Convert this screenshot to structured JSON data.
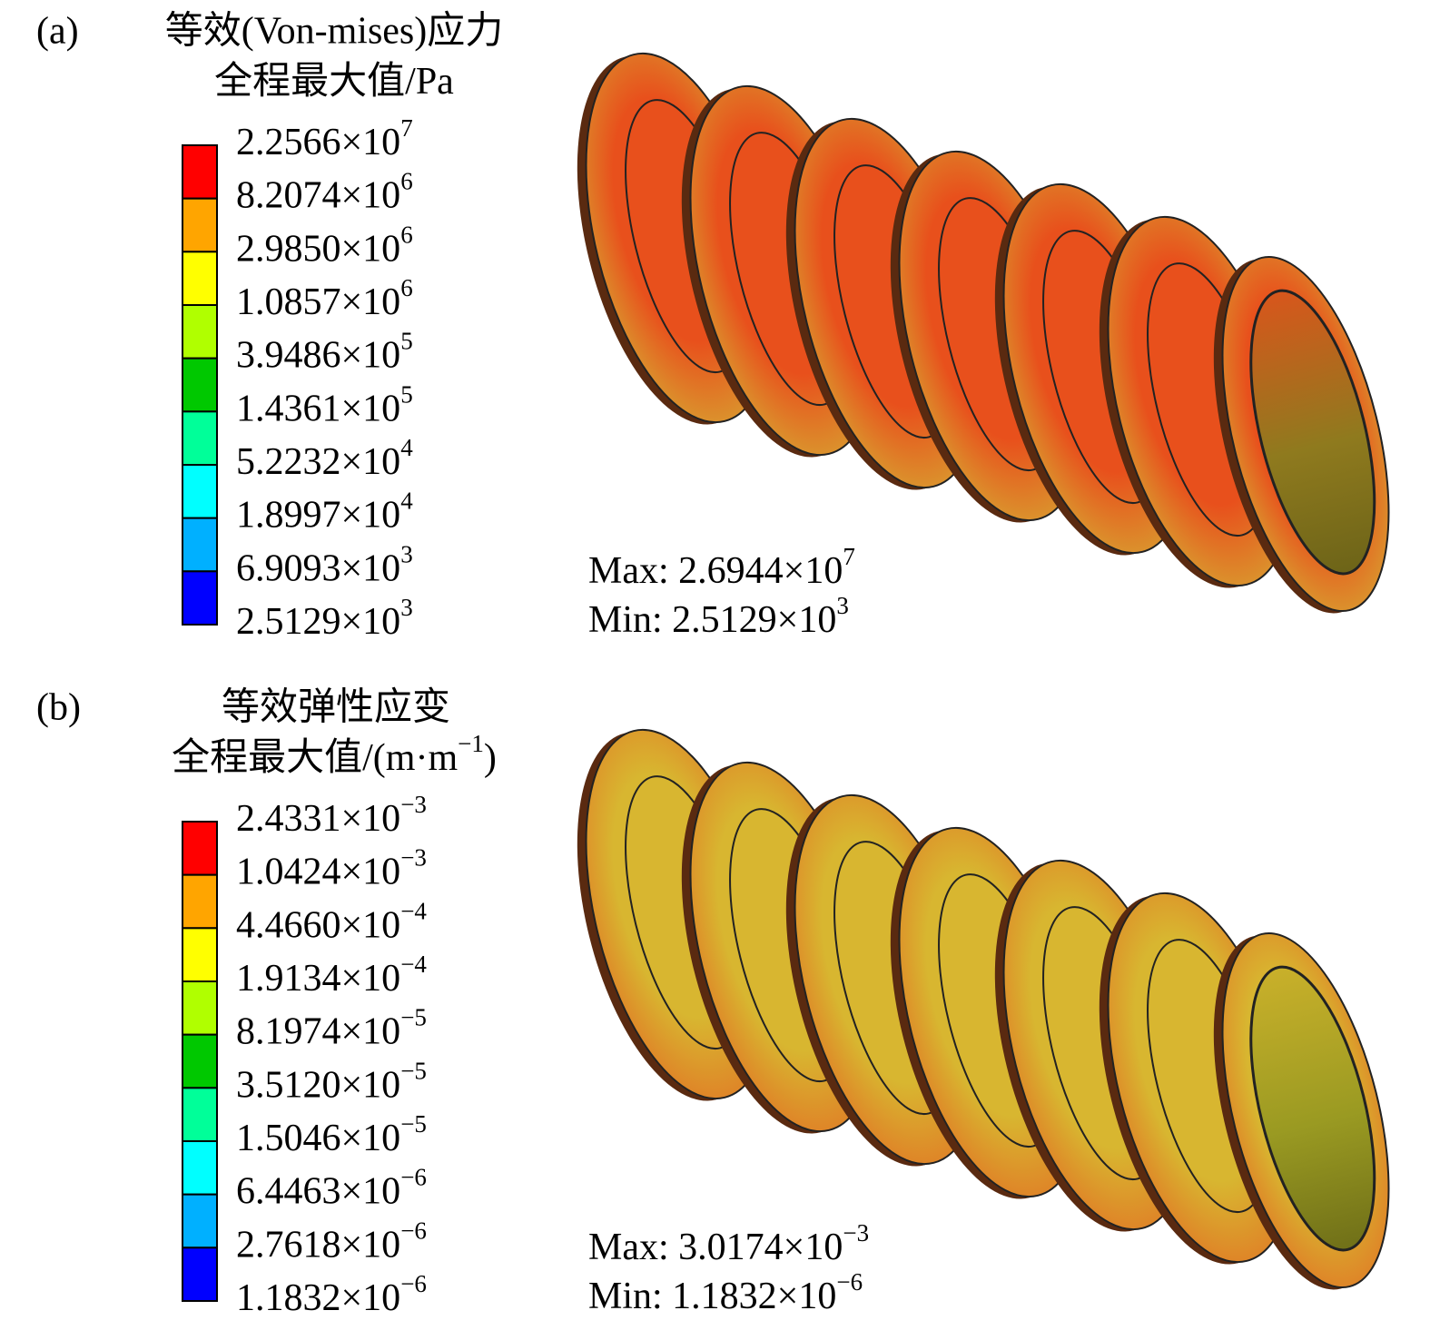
{
  "panels": [
    {
      "label": "(a)",
      "title": "等效(Von-mises)应力",
      "subtitle": {
        "text": "全程最大值/Pa"
      },
      "legend": {
        "colors": [
          "#ff0000",
          "#ffa500",
          "#ffff00",
          "#b0ff00",
          "#00c800",
          "#00ff99",
          "#00ffff",
          "#00b0ff",
          "#0000ff"
        ],
        "levels": [
          {
            "text": "2.2566×10",
            "sup": "7"
          },
          {
            "text": "8.2074×10",
            "sup": "6"
          },
          {
            "text": "2.9850×10",
            "sup": "6"
          },
          {
            "text": "1.0857×10",
            "sup": "6"
          },
          {
            "text": "3.9486×10",
            "sup": "5"
          },
          {
            "text": "1.4361×10",
            "sup": "5"
          },
          {
            "text": "5.2232×10",
            "sup": "4"
          },
          {
            "text": "1.8997×10",
            "sup": "4"
          },
          {
            "text": "6.9093×10",
            "sup": "3"
          },
          {
            "text": "2.5129×10",
            "sup": "3"
          }
        ]
      },
      "max": {
        "text": "Max: 2.6944×10",
        "sup": "7"
      },
      "min": {
        "text": "Min: 2.5129×10",
        "sup": "3"
      }
    },
    {
      "label": "(b)",
      "title": "等效弹性应变",
      "subtitle": {
        "text": "全程最大值/(m·m",
        "sup": "−1",
        "tail": ")"
      },
      "legend": {
        "colors": [
          "#ff0000",
          "#ffa500",
          "#ffff00",
          "#b0ff00",
          "#00c800",
          "#00ff99",
          "#00ffff",
          "#00b0ff",
          "#0000ff"
        ],
        "levels": [
          {
            "text": "2.4331×10",
            "sup": "−3"
          },
          {
            "text": "1.0424×10",
            "sup": "−3"
          },
          {
            "text": "4.4660×10",
            "sup": "−4"
          },
          {
            "text": "1.9134×10",
            "sup": "−4"
          },
          {
            "text": "8.1974×10",
            "sup": "−5"
          },
          {
            "text": "3.5120×10",
            "sup": "−5"
          },
          {
            "text": "1.5046×10",
            "sup": "−5"
          },
          {
            "text": "6.4463×10",
            "sup": "−6"
          },
          {
            "text": "2.7618×10",
            "sup": "−6"
          },
          {
            "text": "1.1832×10",
            "sup": "−6"
          }
        ]
      },
      "max": {
        "text": "Max: 3.0174×10",
        "sup": "−3"
      },
      "min": {
        "text": "Min: 1.1832×10",
        "sup": "−6"
      }
    }
  ]
}
